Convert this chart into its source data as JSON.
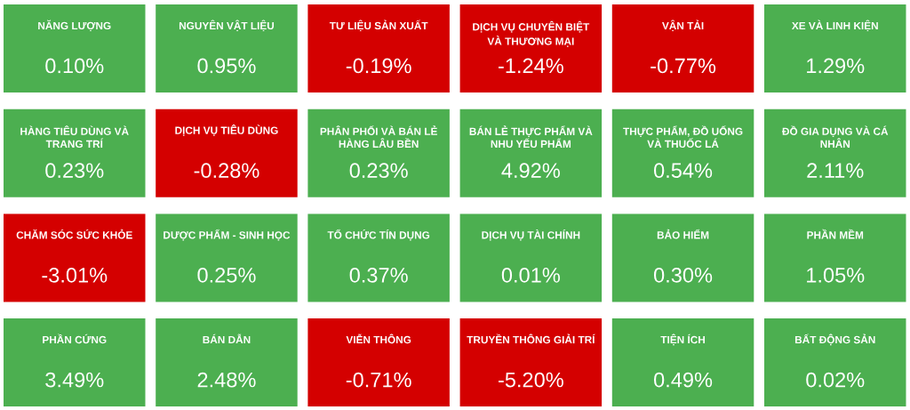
{
  "chart_data": {
    "type": "other",
    "categories": [
      "NĂNG LƯỢNG",
      "NGUYÊN VẬT LIỆU",
      "TƯ LIỆU SẢN XUẤT",
      "DỊCH VỤ CHUYÊN BIỆT VÀ THƯƠNG MẠI",
      "VẬN TẢI",
      "XE VÀ LINH KIỆN",
      "HÀNG TIÊU DÙNG VÀ TRANG TRÍ",
      "DỊCH VỤ TIÊU DÙNG",
      "PHÂN PHỐI VÀ BÁN LẺ HÀNG LÂU BỀN",
      "BÁN LẺ THỰC PHẨM VÀ NHU YẾU PHẨM",
      "THỰC PHẨM, ĐỒ UỐNG VÀ THUỐC LÁ",
      "ĐỒ GIA DỤNG VÀ CÁ NHÂN",
      "CHĂM SÓC SỨC KHỎE",
      "DƯỢC PHẨM - SINH HỌC",
      "TỔ CHỨC TÍN DỤNG",
      "DỊCH VỤ TÀI CHÍNH",
      "BẢO HIỂM",
      "PHẦN MỀM",
      "PHẦN CỨNG",
      "BÁN DẪN",
      "VIỄN THÔNG",
      "TRUYỀN THÔNG GIẢI TRÍ",
      "TIỆN ÍCH",
      "BẤT ĐỘNG SẢN"
    ],
    "values": [
      0.1,
      0.95,
      -0.19,
      -1.24,
      -0.77,
      1.29,
      0.23,
      -0.28,
      0.23,
      4.92,
      0.54,
      2.11,
      -3.01,
      0.25,
      0.37,
      0.01,
      0.3,
      1.05,
      3.49,
      2.48,
      -0.71,
      -5.2,
      0.49,
      0.02
    ],
    "value_labels": [
      "0.10%",
      "0.95%",
      "-0.19%",
      "-1.24%",
      "-0.77%",
      "1.29%",
      "0.23%",
      "-0.28%",
      "0.23%",
      "4.92%",
      "0.54%",
      "2.11%",
      "-3.01%",
      "0.25%",
      "0.37%",
      "0.01%",
      "0.30%",
      "1.05%",
      "3.49%",
      "2.48%",
      "-0.71%",
      "-5.20%",
      "0.49%",
      "0.02%"
    ],
    "colors": [
      "#4caf50",
      "#4caf50",
      "#d40000",
      "#d40000",
      "#d40000",
      "#4caf50",
      "#4caf50",
      "#d40000",
      "#4caf50",
      "#4caf50",
      "#4caf50",
      "#4caf50",
      "#d40000",
      "#4caf50",
      "#4caf50",
      "#4caf50",
      "#4caf50",
      "#4caf50",
      "#4caf50",
      "#4caf50",
      "#d40000",
      "#d40000",
      "#4caf50",
      "#4caf50"
    ]
  }
}
